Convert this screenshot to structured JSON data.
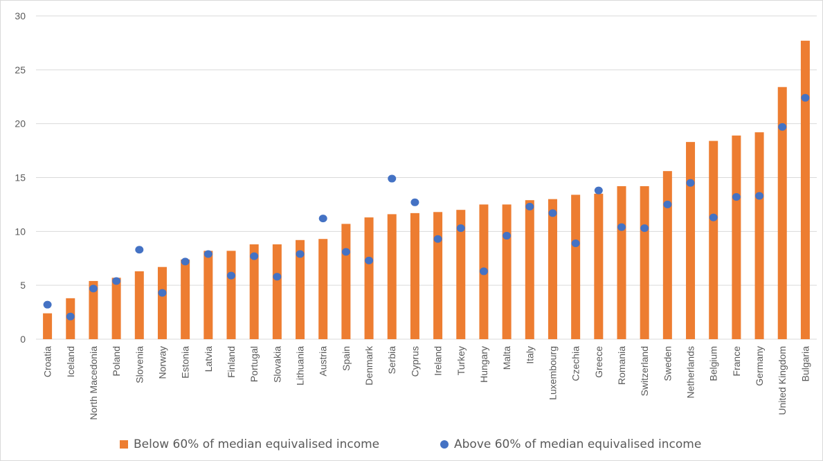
{
  "chart_data": {
    "type": "bar",
    "title": "",
    "xlabel": "",
    "ylabel": "",
    "ylim": [
      0,
      30
    ],
    "yticks": [
      0,
      5,
      10,
      15,
      20,
      25,
      30
    ],
    "grid": true,
    "legend_position": "bottom",
    "categories": [
      "Croatia",
      "Iceland",
      "North Macedonia",
      "Poland",
      "Slovenia",
      "Norway",
      "Estonia",
      "Latvia",
      "Finland",
      "Portugal",
      "Slovakia",
      "Lithuania",
      "Austria",
      "Spain",
      "Denmark",
      "Serbia",
      "Cyprus",
      "Ireland",
      "Turkey",
      "Hungary",
      "Malta",
      "Italy",
      "Luxembourg",
      "Czechia",
      "Greece",
      "Romania",
      "Switzerland",
      "Sweden",
      "Netherlands",
      "Belgium",
      "France",
      "Germany",
      "United Kingdom",
      "Bulgaria"
    ],
    "series": [
      {
        "name": "Below 60% of median equivalised income",
        "type": "bar",
        "color": "#ed7d31",
        "values": [
          2.4,
          3.8,
          5.4,
          5.7,
          6.3,
          6.7,
          7.4,
          8.2,
          8.2,
          8.8,
          8.8,
          9.2,
          9.3,
          10.7,
          11.3,
          11.6,
          11.7,
          11.8,
          12.0,
          12.5,
          12.5,
          12.9,
          13.0,
          13.4,
          13.5,
          14.2,
          14.2,
          15.6,
          18.3,
          18.4,
          18.9,
          19.2,
          23.4,
          27.7
        ]
      },
      {
        "name": "Above 60% of median equivalised income",
        "type": "scatter",
        "color": "#4472c4",
        "values": [
          3.2,
          2.1,
          4.7,
          5.4,
          8.3,
          4.3,
          7.2,
          7.9,
          5.9,
          7.7,
          5.8,
          7.9,
          11.2,
          8.1,
          7.3,
          14.9,
          12.7,
          9.3,
          10.3,
          6.3,
          9.6,
          12.3,
          11.7,
          8.9,
          13.8,
          10.4,
          10.3,
          12.5,
          14.5,
          11.3,
          13.2,
          13.3,
          19.7,
          22.4
        ]
      }
    ]
  }
}
